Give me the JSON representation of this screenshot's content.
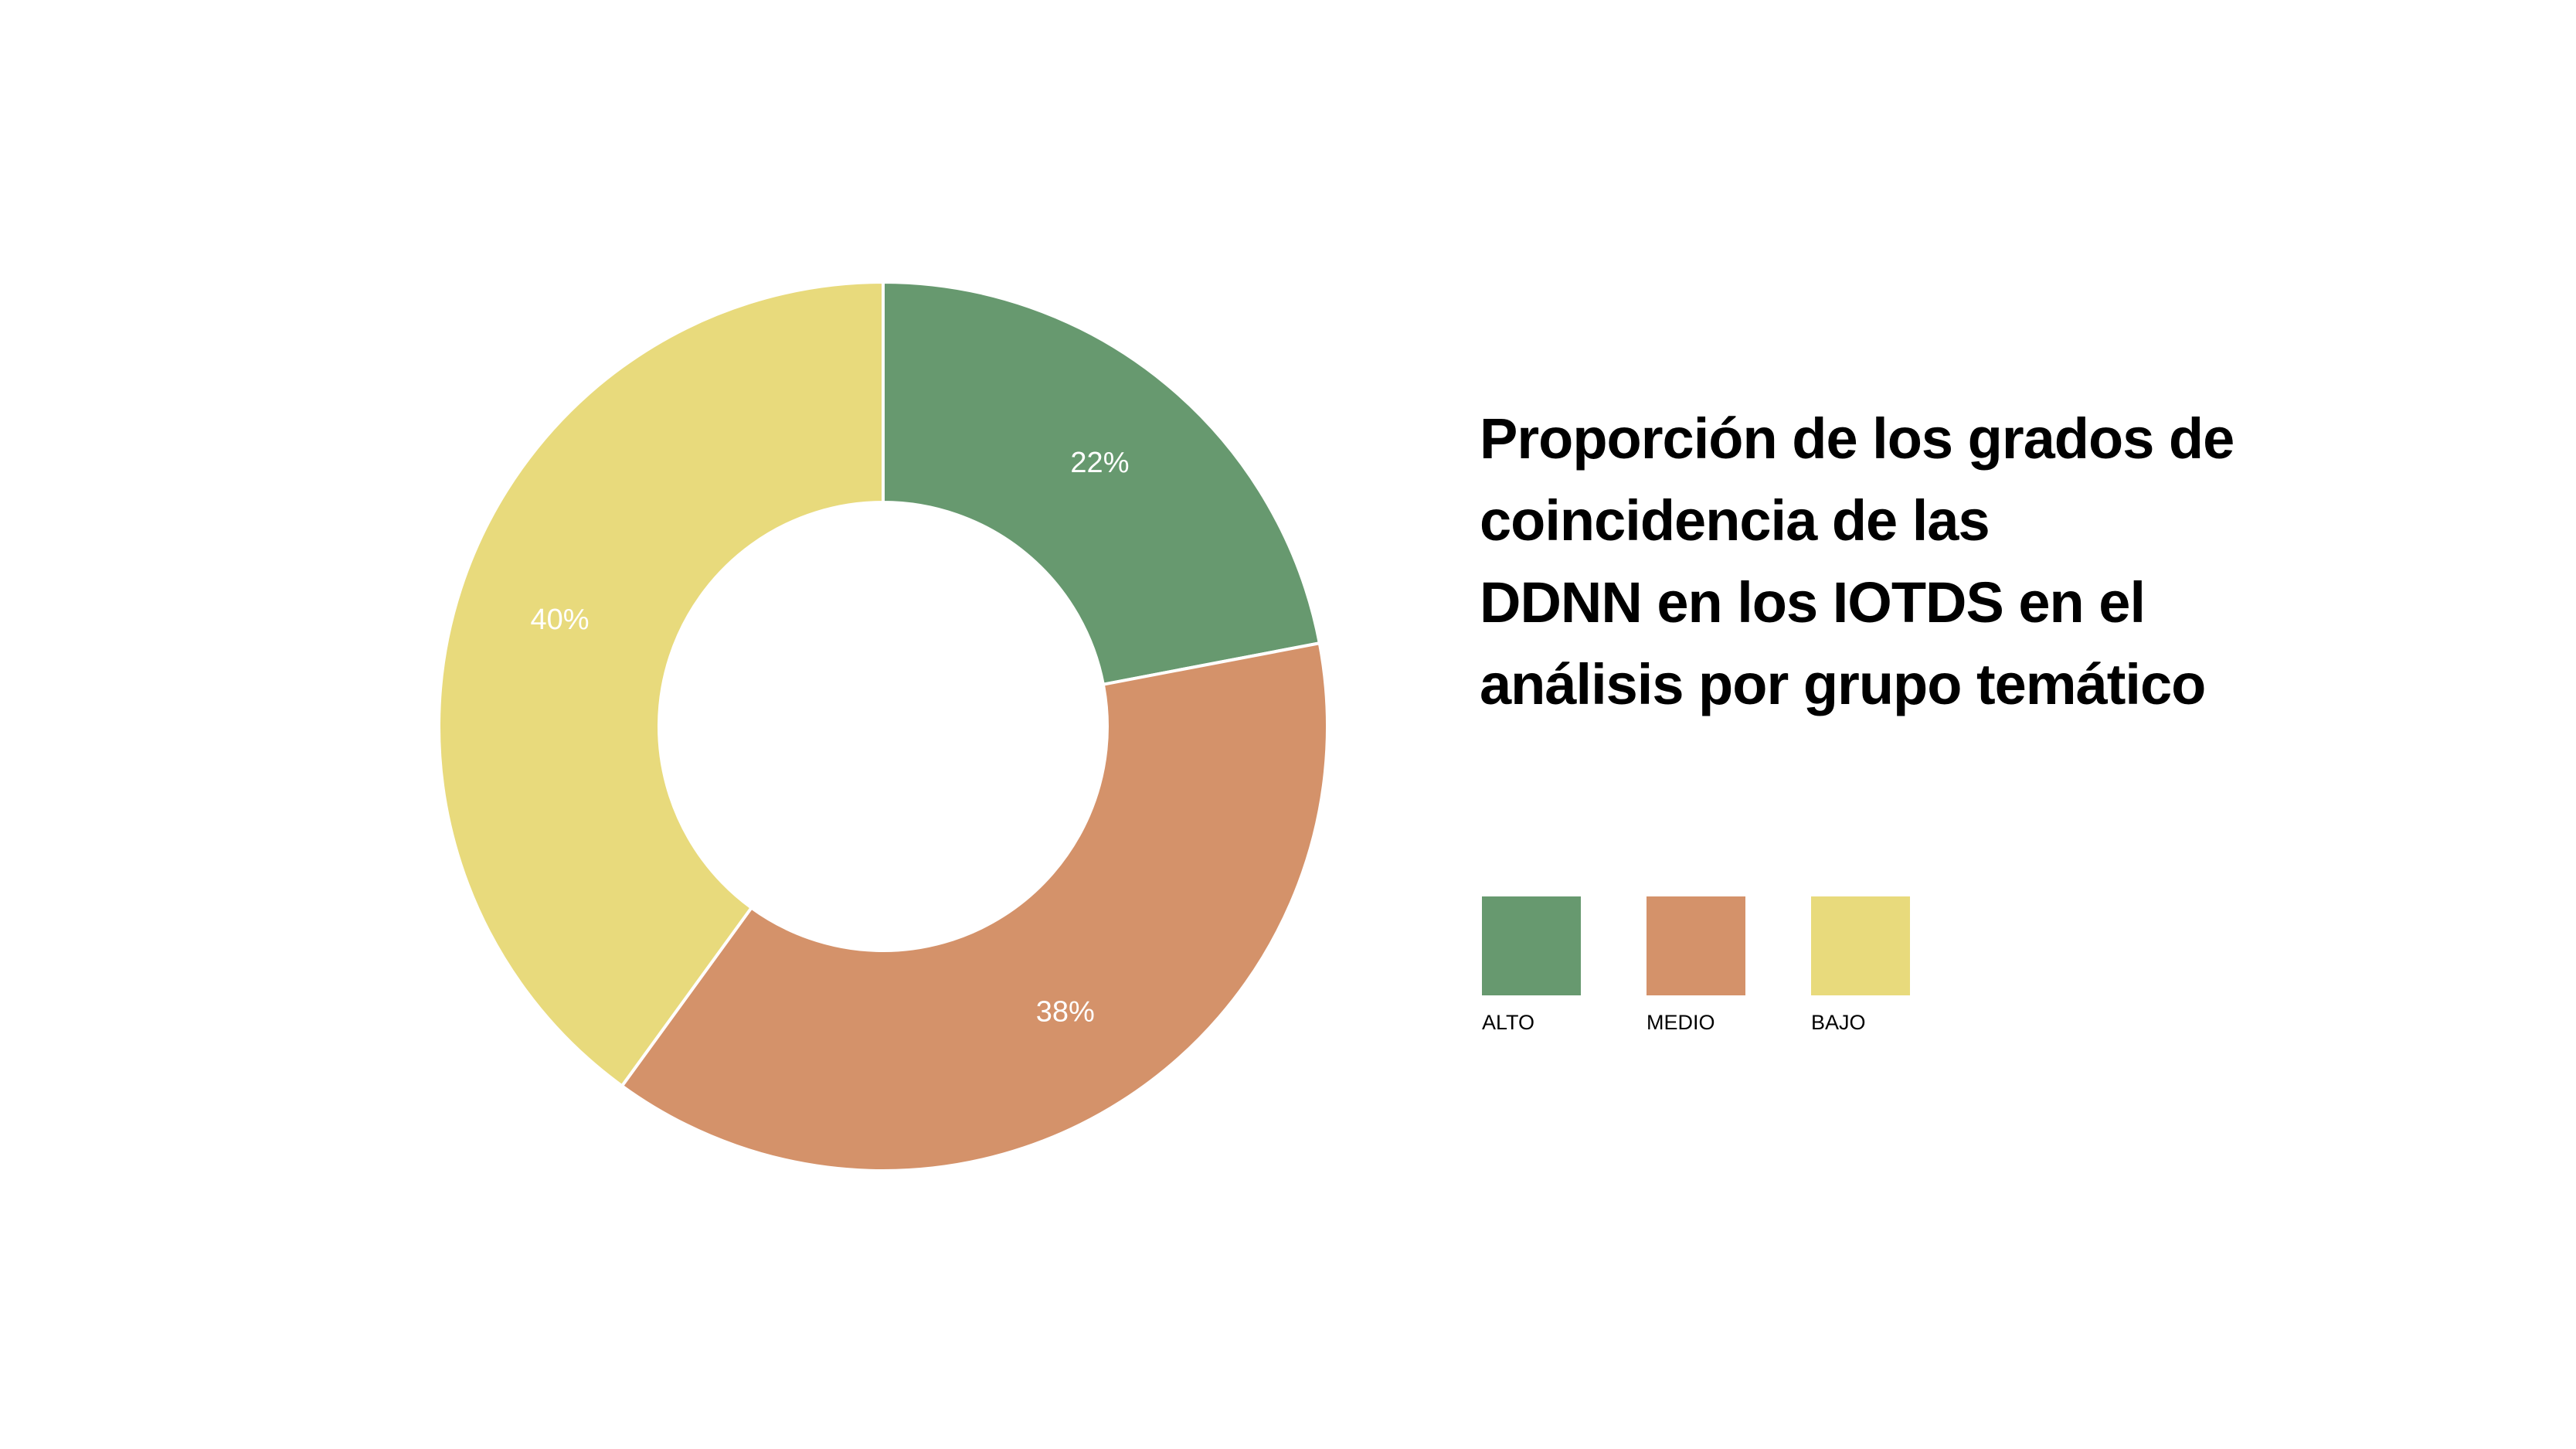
{
  "chart_data": {
    "type": "pie",
    "title_lines": [
      "Proporción de los grados de",
      "coincidencia de las",
      "DDNN en los IOTDS en el",
      "análisis por grupo temático"
    ],
    "categories": [
      "ALTO",
      "MEDIO",
      "BAJO"
    ],
    "values": [
      22,
      38,
      40
    ],
    "value_labels": [
      "22%",
      "38%",
      "40%"
    ],
    "colors": [
      "#67996f",
      "#d4926a",
      "#e8da7c"
    ],
    "donut": true,
    "legend_position": "right-bottom"
  }
}
